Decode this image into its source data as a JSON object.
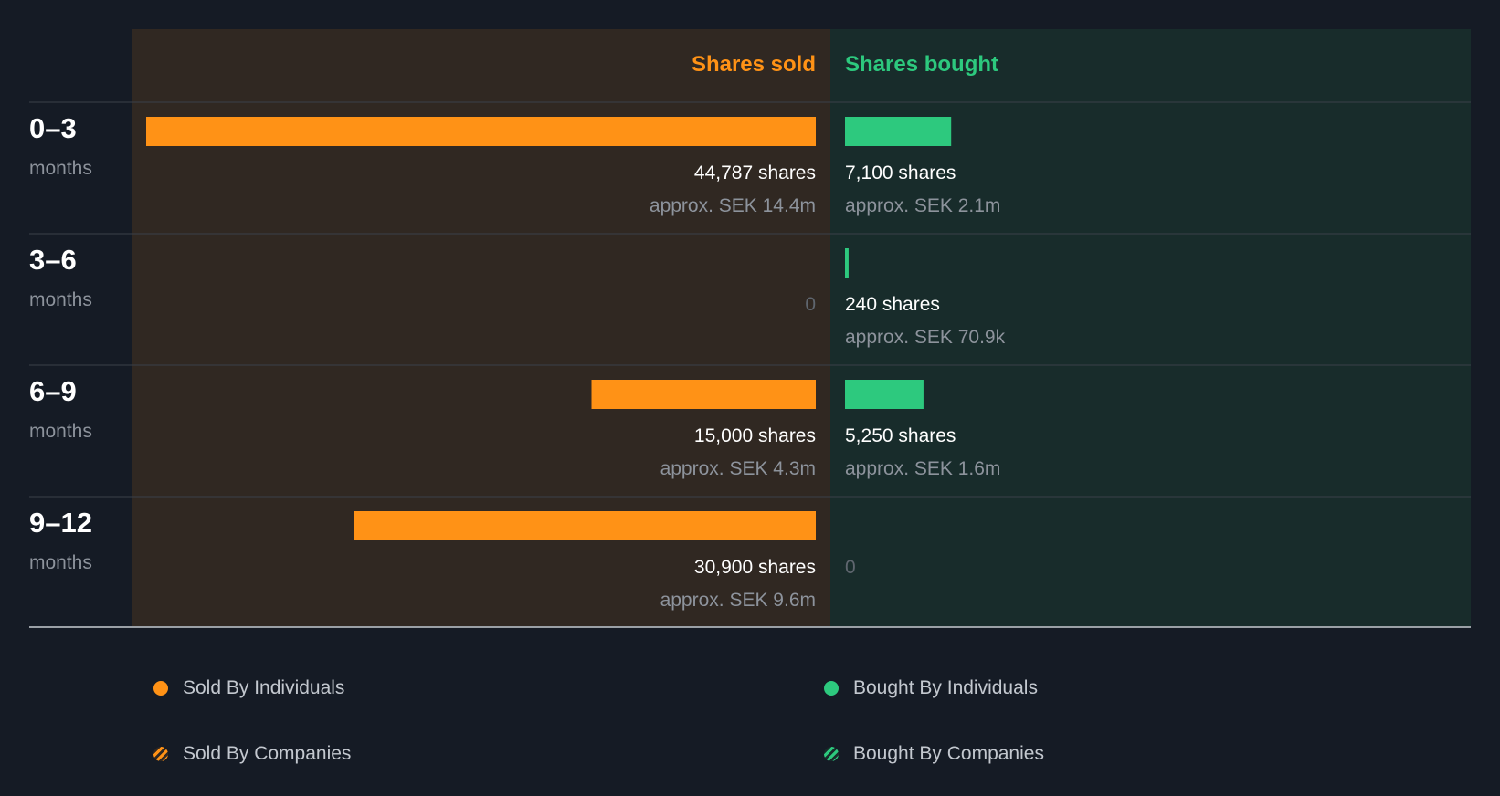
{
  "colors": {
    "background": "#151b25",
    "sold": "#ff9216",
    "bought": "#2dc97e",
    "sold_panel": "#302822",
    "bought_panel": "#182c2b",
    "divider": "#3a4149",
    "axis": "#9aa0a6"
  },
  "headers": {
    "sold": "Shares sold",
    "bought": "Shares bought"
  },
  "chart_data": {
    "type": "bar",
    "title": "",
    "categories": [
      "0–3",
      "3–6",
      "6–9",
      "9–12"
    ],
    "category_sublabel": "months",
    "series": [
      {
        "name": "Shares sold",
        "direction": "left",
        "values": [
          44787,
          0,
          15000,
          30900
        ],
        "labels": [
          "44,787 shares",
          "0",
          "15,000 shares",
          "30,900 shares"
        ],
        "values_sek": [
          "approx. SEK 14.4m",
          "",
          "approx. SEK 4.3m",
          "approx. SEK 9.6m"
        ]
      },
      {
        "name": "Shares bought",
        "direction": "right",
        "values": [
          7100,
          240,
          5250,
          0
        ],
        "labels": [
          "7,100 shares",
          "240 shares",
          "5,250 shares",
          "0"
        ],
        "values_sek": [
          "approx. SEK 2.1m",
          "approx. SEK 70.9k",
          "approx. SEK 1.6m",
          ""
        ]
      }
    ],
    "xlim": [
      0,
      44787
    ],
    "legend_position": "bottom"
  },
  "legend": {
    "sold_individuals": "Sold By Individuals",
    "sold_companies": "Sold By Companies",
    "bought_individuals": "Bought By Individuals",
    "bought_companies": "Bought By Companies"
  }
}
